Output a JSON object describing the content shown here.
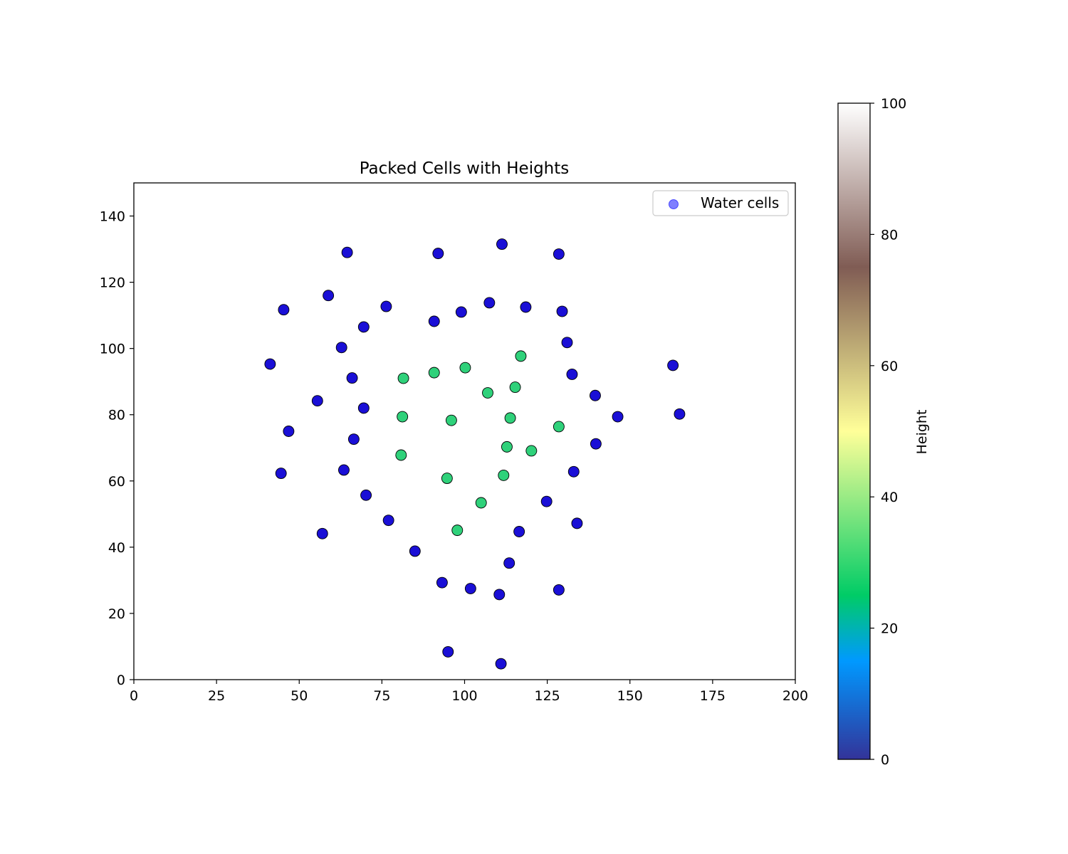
{
  "chart_data": {
    "type": "scatter",
    "title": "Packed Cells with Heights",
    "xlabel": "",
    "ylabel": "",
    "xlim": [
      0,
      200
    ],
    "ylim": [
      0,
      150
    ],
    "x_ticks": [
      0,
      25,
      50,
      75,
      100,
      125,
      150,
      175,
      200
    ],
    "y_ticks": [
      0,
      20,
      40,
      60,
      80,
      100,
      120,
      140
    ],
    "grid": false,
    "legend": {
      "position": "top-right",
      "entries": [
        {
          "label": "Water cells",
          "color": "#0000ff",
          "alpha": 0.5
        }
      ]
    },
    "colorbar": {
      "label": "Height",
      "range": [
        0,
        100
      ],
      "ticks": [
        0,
        20,
        40,
        60,
        80,
        100
      ],
      "colormap": "terrain"
    },
    "series": [
      {
        "name": "Water cells",
        "color": "#1a0fd6",
        "points": [
          [
            64.5,
            129
          ],
          [
            92,
            128.7
          ],
          [
            111.3,
            131.5
          ],
          [
            128.5,
            128.5
          ],
          [
            45.3,
            111.7
          ],
          [
            58.8,
            116
          ],
          [
            76.3,
            112.7
          ],
          [
            69.5,
            106.5
          ],
          [
            90.8,
            108.2
          ],
          [
            99,
            111
          ],
          [
            107.5,
            113.8
          ],
          [
            118.5,
            112.5
          ],
          [
            129.5,
            111.2
          ],
          [
            62.8,
            100.3
          ],
          [
            131,
            101.8
          ],
          [
            41.2,
            95.3
          ],
          [
            66,
            91.1
          ],
          [
            132.5,
            92.2
          ],
          [
            163,
            94.9
          ],
          [
            55.5,
            84.2
          ],
          [
            69.5,
            82
          ],
          [
            139.5,
            85.8
          ],
          [
            146.3,
            79.4
          ],
          [
            165,
            80.2
          ],
          [
            46.8,
            75
          ],
          [
            66.5,
            72.6
          ],
          [
            139.7,
            71.2
          ],
          [
            44.5,
            62.3
          ],
          [
            63.5,
            63.3
          ],
          [
            133,
            62.8
          ],
          [
            70.2,
            55.7
          ],
          [
            124.8,
            53.8
          ],
          [
            77,
            48.1
          ],
          [
            134,
            47.2
          ],
          [
            57,
            44.1
          ],
          [
            116.5,
            44.7
          ],
          [
            85,
            38.8
          ],
          [
            113.5,
            35.2
          ],
          [
            93.2,
            29.3
          ],
          [
            101.8,
            27.5
          ],
          [
            110.5,
            25.7
          ],
          [
            128.5,
            27.1
          ],
          [
            95,
            8.4
          ],
          [
            111,
            4.8
          ]
        ]
      },
      {
        "name": "",
        "color": "#2fd17a",
        "points": [
          [
            81.5,
            91
          ],
          [
            90.8,
            92.7
          ],
          [
            100.2,
            94.2
          ],
          [
            117,
            97.7
          ],
          [
            107,
            86.6
          ],
          [
            115.3,
            88.3
          ],
          [
            81.2,
            79.4
          ],
          [
            96,
            78.3
          ],
          [
            113.8,
            79
          ],
          [
            128.5,
            76.4
          ],
          [
            80.8,
            67.8
          ],
          [
            112.8,
            70.3
          ],
          [
            120.2,
            69.1
          ],
          [
            94.7,
            60.8
          ],
          [
            111.8,
            61.7
          ],
          [
            105,
            53.4
          ],
          [
            97.8,
            45.1
          ]
        ]
      }
    ]
  }
}
